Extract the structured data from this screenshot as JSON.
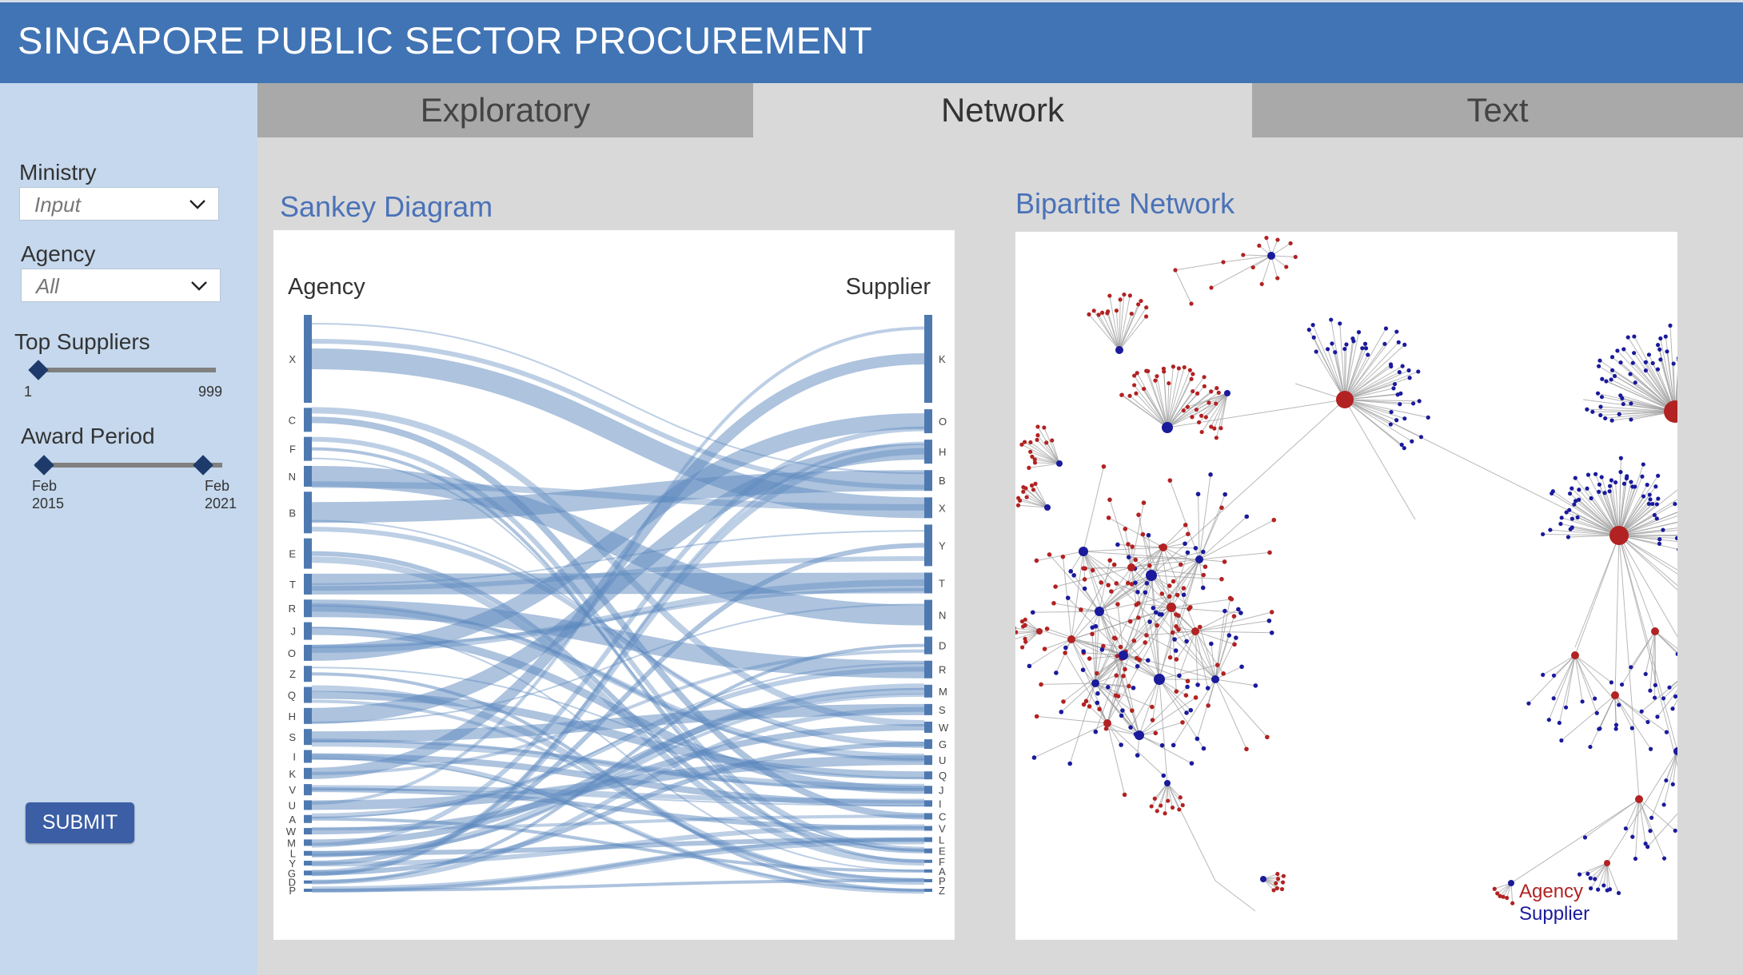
{
  "header": {
    "title": "SINGAPORE PUBLIC SECTOR PROCUREMENT"
  },
  "tabs": [
    {
      "label": "Exploratory",
      "active": false
    },
    {
      "label": "Network",
      "active": true
    },
    {
      "label": "Text",
      "active": false
    }
  ],
  "sidebar": {
    "ministry": {
      "label": "Ministry",
      "value": "Input"
    },
    "agency": {
      "label": "Agency",
      "value": "All"
    },
    "top_suppliers": {
      "label": "Top Suppliers",
      "min": "1",
      "max": "999",
      "value": 1
    },
    "award_period": {
      "label": "Award Period",
      "start_month": "Feb",
      "start_year": "2015",
      "end_month": "Feb",
      "end_year": "2021"
    },
    "submit_label": "SUBMIT"
  },
  "sankey": {
    "title": "Sankey Diagram",
    "left_header": "Agency",
    "right_header": "Supplier",
    "left_nodes": [
      "X",
      "C",
      "F",
      "N",
      "B",
      "E",
      "T",
      "R",
      "J",
      "O",
      "Z",
      "Q",
      "H",
      "S",
      "I",
      "K",
      "V",
      "U",
      "A",
      "W",
      "M",
      "L",
      "Y",
      "G",
      "D",
      "P"
    ],
    "right_nodes": [
      "K",
      "O",
      "H",
      "B",
      "X",
      "Y",
      "T",
      "N",
      "D",
      "R",
      "M",
      "S",
      "W",
      "G",
      "U",
      "Q",
      "J",
      "I",
      "C",
      "V",
      "L",
      "E",
      "F",
      "A",
      "P",
      "Z"
    ]
  },
  "network": {
    "title": "Bipartite Network",
    "legend_agency": "Agency",
    "legend_supplier": "Supplier",
    "colors": {
      "agency": "#b22222",
      "supplier": "#1a1a9c",
      "edge": "#9a9a9a"
    }
  },
  "colors": {
    "header": "#4174b4",
    "sidebar": "#c5d8ed",
    "accent": "#4a72b8",
    "sankey_flow": "#5b87bd"
  }
}
